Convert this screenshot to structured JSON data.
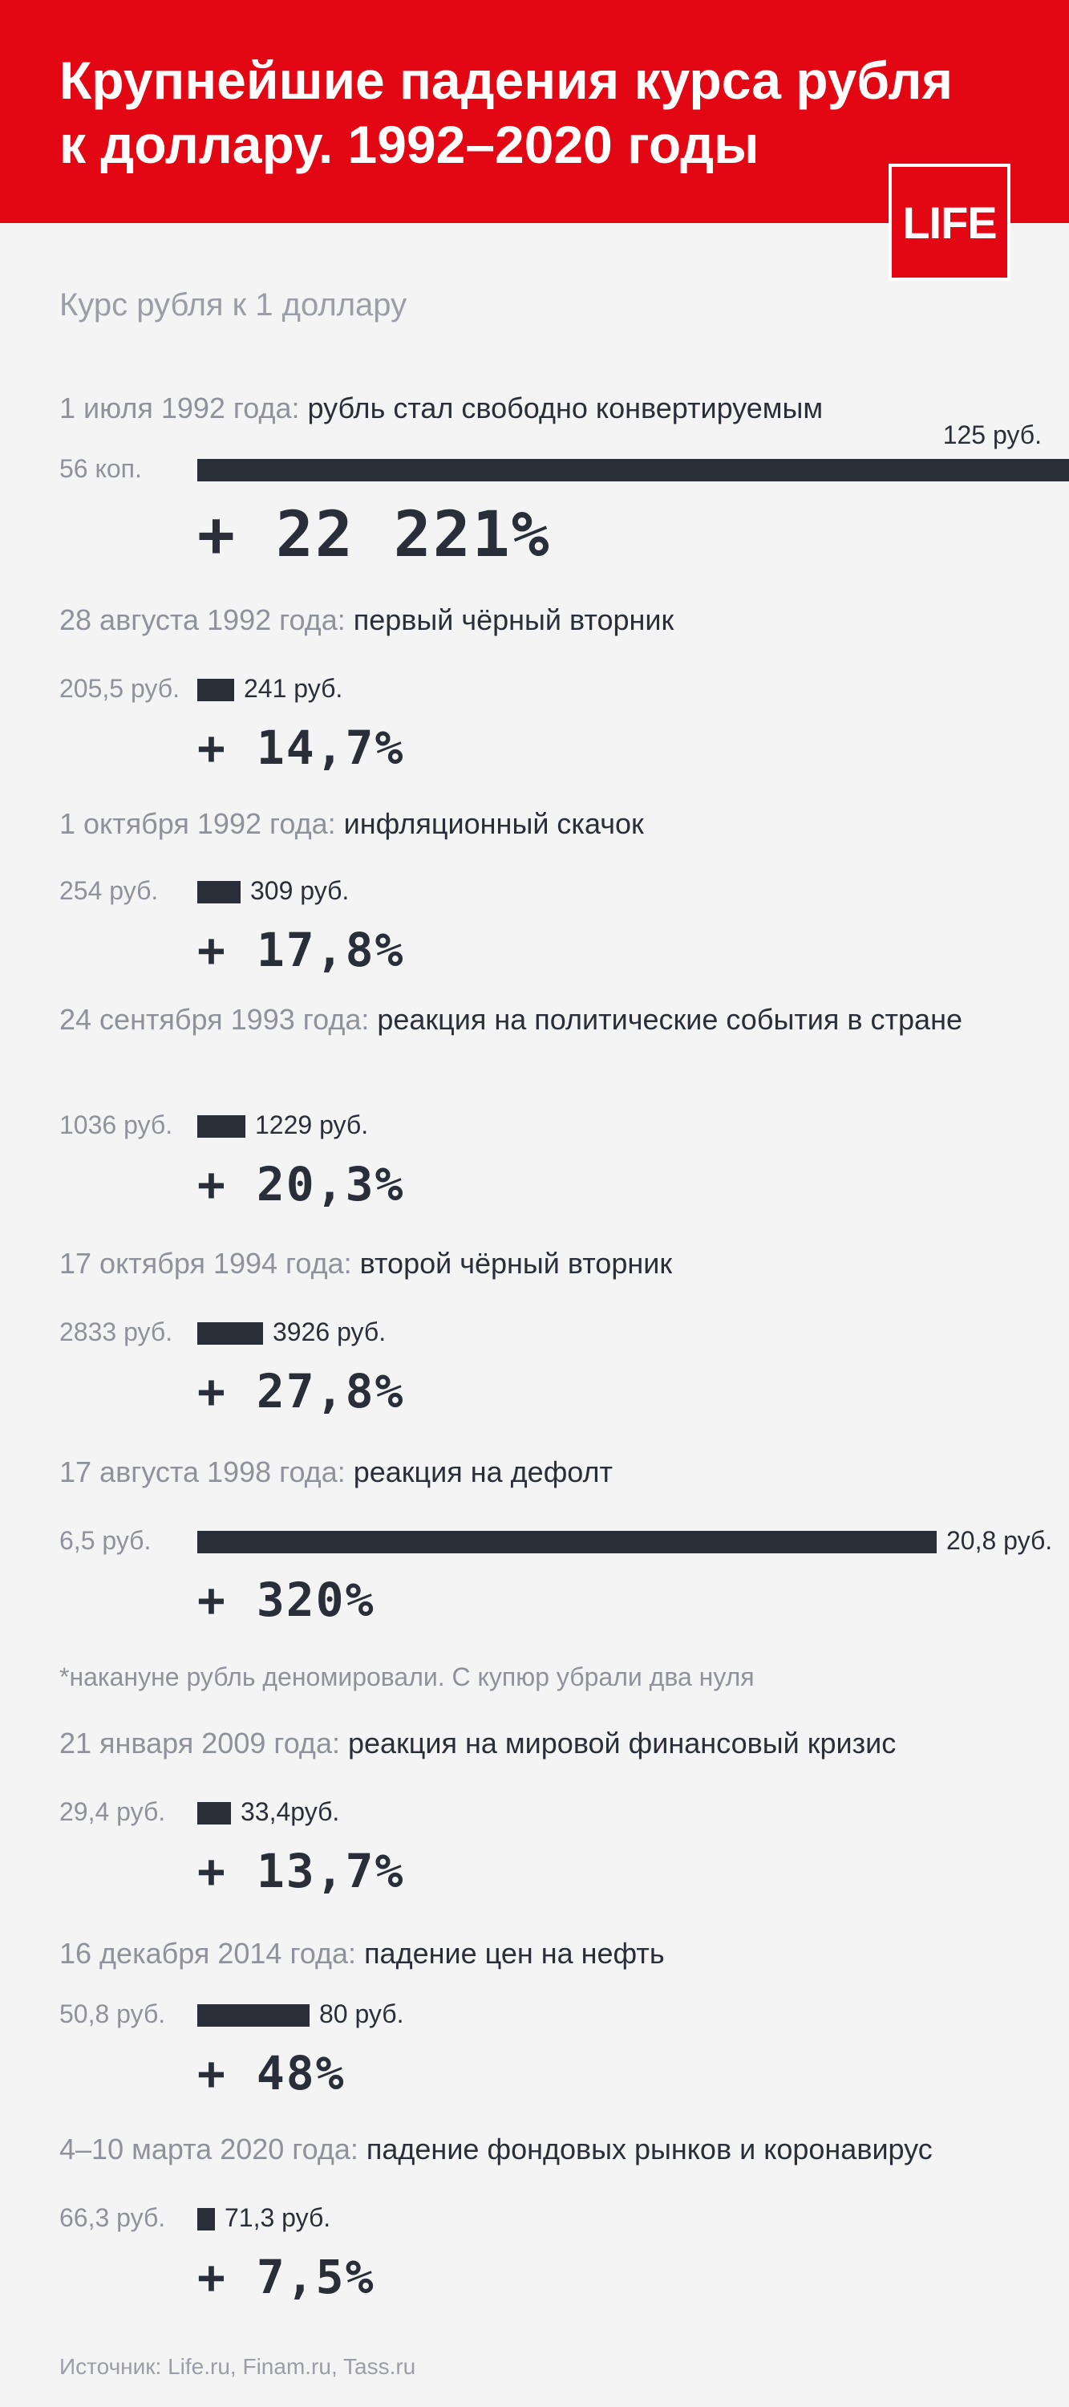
{
  "header": {
    "title_line1": "Крупнейшие падения курса рубля",
    "title_line2": "к доллару. 1992–2020 годы",
    "logo": "LIFE"
  },
  "subtitle": "Курс рубля к 1 доллару",
  "colors": {
    "header_bg": "#e30613",
    "bar": "#2a2e38",
    "background": "#f4f4f4"
  },
  "chart_data": {
    "type": "bar",
    "title": "Крупнейшие падения курса рубля к доллару. 1992–2020 годы",
    "ylabel": "Курс рубля к 1 доллару",
    "events": [
      {
        "date": "1 июля 1992 года:",
        "text": "рубль стал свободно конвертируемым",
        "from_label": "56 коп.",
        "to_label": "125 руб.",
        "change_label": "+ 22 221%",
        "change_pct": 22221
      },
      {
        "date": "28 августа 1992 года:",
        "text": "первый чёрный вторник",
        "from_label": "205,5 руб.",
        "to_label": "241 руб.",
        "change_label": "+ 14,7%",
        "change_pct": 14.7
      },
      {
        "date": "1 октября 1992 года:",
        "text": "инфляционный скачок",
        "from_label": "254 руб.",
        "to_label": "309 руб.",
        "change_label": "+ 17,8%",
        "change_pct": 17.8
      },
      {
        "date": "24 сентября 1993 года:",
        "text": "реакция на политические события в стране",
        "from_label": "1036 руб.",
        "to_label": "1229 руб.",
        "change_label": "+ 20,3%",
        "change_pct": 20.3
      },
      {
        "date": "17 октября 1994 года:",
        "text": "второй чёрный вторник",
        "from_label": "2833 руб.",
        "to_label": "3926 руб.",
        "change_label": "+ 27,8%",
        "change_pct": 27.8
      },
      {
        "date": "17 августа 1998 года:",
        "text": "реакция на дефолт",
        "from_label": "6,5 руб.",
        "to_label": "20,8 руб.",
        "change_label": "+ 320%",
        "change_pct": 320
      },
      {
        "date": "21 января 2009 года:",
        "text": "реакция на мировой финансовый кризис",
        "from_label": "29,4 руб.",
        "to_label": "33,4руб.",
        "change_label": "+ 13,7%",
        "change_pct": 13.7
      },
      {
        "date": "16 декабря 2014 года:",
        "text": "падение цен на нефть",
        "from_label": "50,8 руб.",
        "to_label": "80 руб.",
        "change_label": "+ 48%",
        "change_pct": 48
      },
      {
        "date": "4–10 марта 2020 года:",
        "text": "падение фондовых рынков и коронавирус",
        "from_label": "66,3 руб.",
        "to_label": "71,3 руб.",
        "change_label": "+ 7,5%",
        "change_pct": 7.5
      }
    ],
    "note": "*накануне рубль деномировали. С купюр убрали два нуля"
  },
  "source": "Источник: Life.ru, Finam.ru, Tass.ru"
}
